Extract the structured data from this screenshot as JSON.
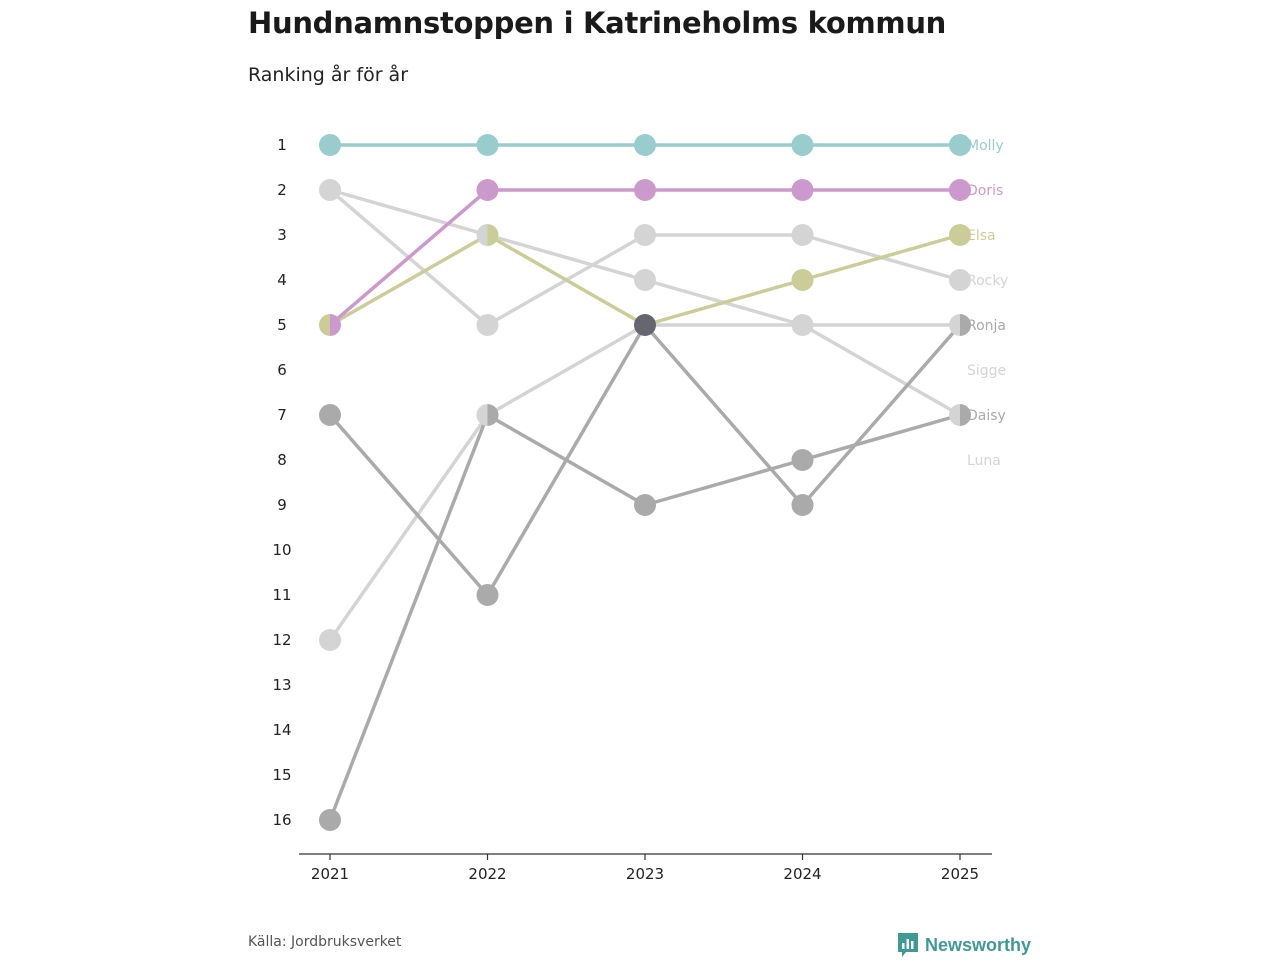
{
  "title": "Hundnamnstoppen i Katrineholms kommun",
  "subtitle": "Ranking år för år",
  "source": "Källa: Jordbruksverket",
  "logo": {
    "text": "Newsworthy",
    "icon": "newsworthy-logo-icon",
    "color": "#3f9a96"
  },
  "chart_data": {
    "type": "line",
    "chart_kind": "bump",
    "title": "Hundnamnstoppen i Katrineholms kommun",
    "subtitle": "Ranking år för år",
    "x": [
      "2021",
      "2022",
      "2023",
      "2024",
      "2025"
    ],
    "y_ticks": [
      "1",
      "2",
      "3",
      "4",
      "5",
      "6",
      "7",
      "8",
      "9",
      "10",
      "11",
      "12",
      "13",
      "14",
      "15",
      "16"
    ],
    "ylim": [
      1,
      16
    ],
    "y_inverted": true,
    "series": [
      {
        "name": "Luna",
        "color": "#d4d4d4",
        "values": [
          12,
          7,
          5,
          5,
          5
        ]
      },
      {
        "name": "Sigge",
        "color": "#d4d4d4",
        "values": [
          2,
          5,
          3,
          3,
          4
        ]
      },
      {
        "name": "Rocky",
        "color": "#d4d4d4",
        "values": [
          2,
          3,
          4,
          5,
          7
        ]
      },
      {
        "name": "Daisy",
        "color": "#aaaaaa",
        "values": [
          7,
          11,
          5,
          9,
          5
        ]
      },
      {
        "name": "Ronja",
        "color": "#aaaaaa",
        "values": [
          16,
          7,
          9,
          8,
          7
        ]
      },
      {
        "name": "Elsa",
        "color": "#cccc99",
        "values": [
          5,
          3,
          5,
          4,
          3
        ]
      },
      {
        "name": "Doris",
        "color": "#cc99cc",
        "values": [
          5,
          2,
          2,
          2,
          2
        ]
      },
      {
        "name": "Molly",
        "color": "#99cccc",
        "values": [
          1,
          1,
          1,
          1,
          1
        ]
      }
    ],
    "labels": [
      {
        "name": "Molly",
        "color": "#99cccc",
        "rank": 1
      },
      {
        "name": "Doris",
        "color": "#cc99cc",
        "rank": 2
      },
      {
        "name": "Elsa",
        "color": "#cccc99",
        "rank": 3
      },
      {
        "name": "Rocky",
        "color": "#d4d4d4",
        "rank": 4
      },
      {
        "name": "Ronja",
        "color": "#aaaaaa",
        "rank": 5
      },
      {
        "name": "Sigge",
        "color": "#d4d4d4",
        "rank": 6
      },
      {
        "name": "Daisy",
        "color": "#aaaaaa",
        "rank": 7
      },
      {
        "name": "Luna",
        "color": "#d4d4d4",
        "rank": 8
      }
    ],
    "overlap_color": "#666670"
  }
}
